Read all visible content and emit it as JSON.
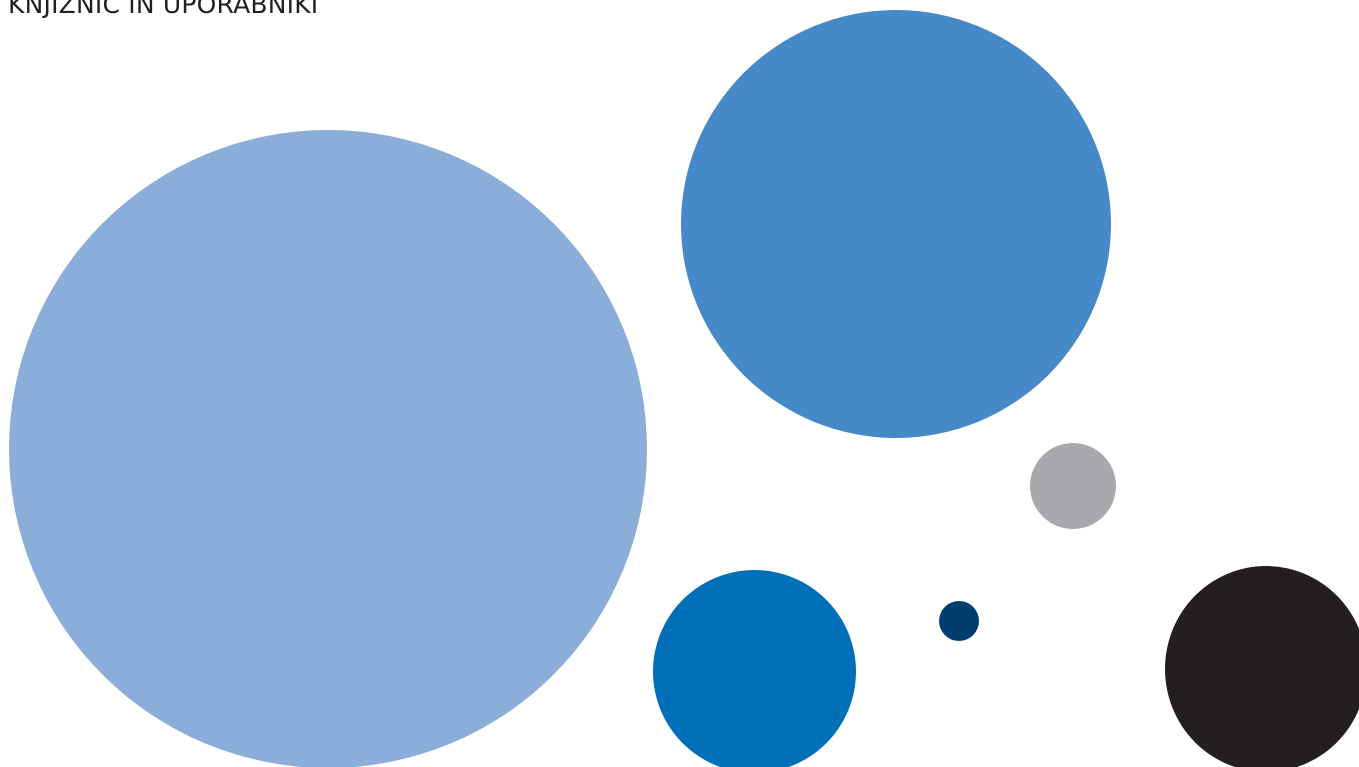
{
  "heading": {
    "text": "KNJIŽNIC IN UPORABNIKI"
  },
  "palette": {
    "light_blue": "#8badda",
    "mid_blue": "#4689c8",
    "gray": "#a7a9ac",
    "blue": "#006fba",
    "navy": "#003d6f",
    "black": "#231f20"
  }
}
